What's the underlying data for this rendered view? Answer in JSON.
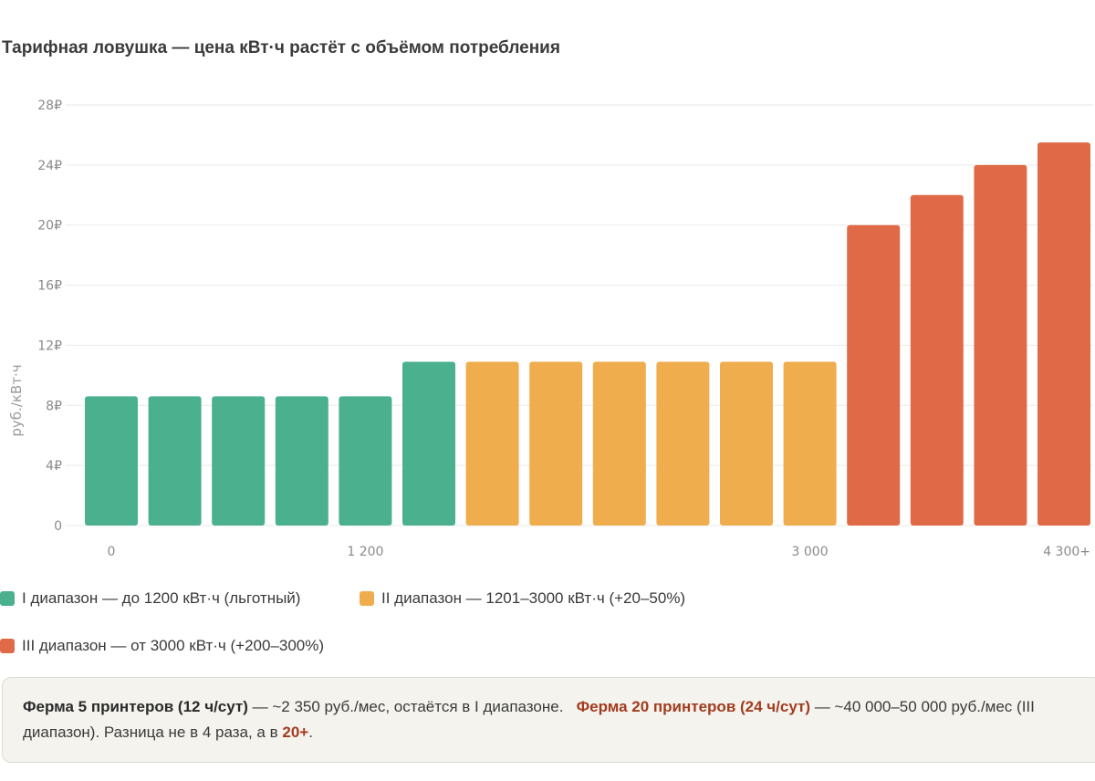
{
  "title": "Тарифная ловушка — цена кВт·ч растёт с объёмом потребления",
  "chart_data": {
    "type": "bar",
    "ylabel": "руб./кВт·ч",
    "ylim": [
      0,
      28
    ],
    "yticks": [
      0,
      4,
      8,
      12,
      16,
      20,
      24,
      28
    ],
    "ytick_labels": [
      "0",
      "4₽",
      "8₽",
      "12₽",
      "16₽",
      "20₽",
      "24₽",
      "28₽"
    ],
    "xtick_labels": [
      {
        "bar": 0,
        "label": "0"
      },
      {
        "bar": 4,
        "label": "1 200"
      },
      {
        "bar": 11,
        "label": "3 000"
      },
      {
        "bar": 15,
        "label": "4 300+"
      }
    ],
    "grid": true,
    "legend_position": "bottom",
    "series": [
      {
        "name": "I диапазон — до 1200 кВт·ч (льготный)",
        "color": "#4ab08e",
        "values": [
          8.6,
          8.6,
          8.6,
          8.6,
          8.6,
          10.9,
          null,
          null,
          null,
          null,
          null,
          null,
          null,
          null,
          null,
          null
        ]
      },
      {
        "name": "II диапазон — 1201–3000 кВт·ч (+20–50%)",
        "color": "#f0ad4e",
        "values": [
          null,
          null,
          null,
          null,
          null,
          null,
          10.9,
          10.9,
          10.9,
          10.9,
          10.9,
          10.9,
          null,
          null,
          null,
          null
        ]
      },
      {
        "name": "III диапазон — от 3000 кВт·ч (+200–300%)",
        "color": "#e06a48",
        "values": [
          null,
          null,
          null,
          null,
          null,
          null,
          null,
          null,
          null,
          null,
          null,
          null,
          20,
          22,
          24,
          25.5
        ]
      }
    ]
  },
  "note": {
    "part1_bold": "Ферма 5 принтеров (12 ч/сут)",
    "part2": " — ~2 350 руб./мес, остаётся в I диапазоне.",
    "part3_hl": "Ферма 20 принтеров (24 ч/сут)",
    "part4": " — ~40 000–50 000 руб./мес (III диапазон). Разница не в 4 раза, а в ",
    "part5_hl": "20+",
    "part6": "."
  }
}
